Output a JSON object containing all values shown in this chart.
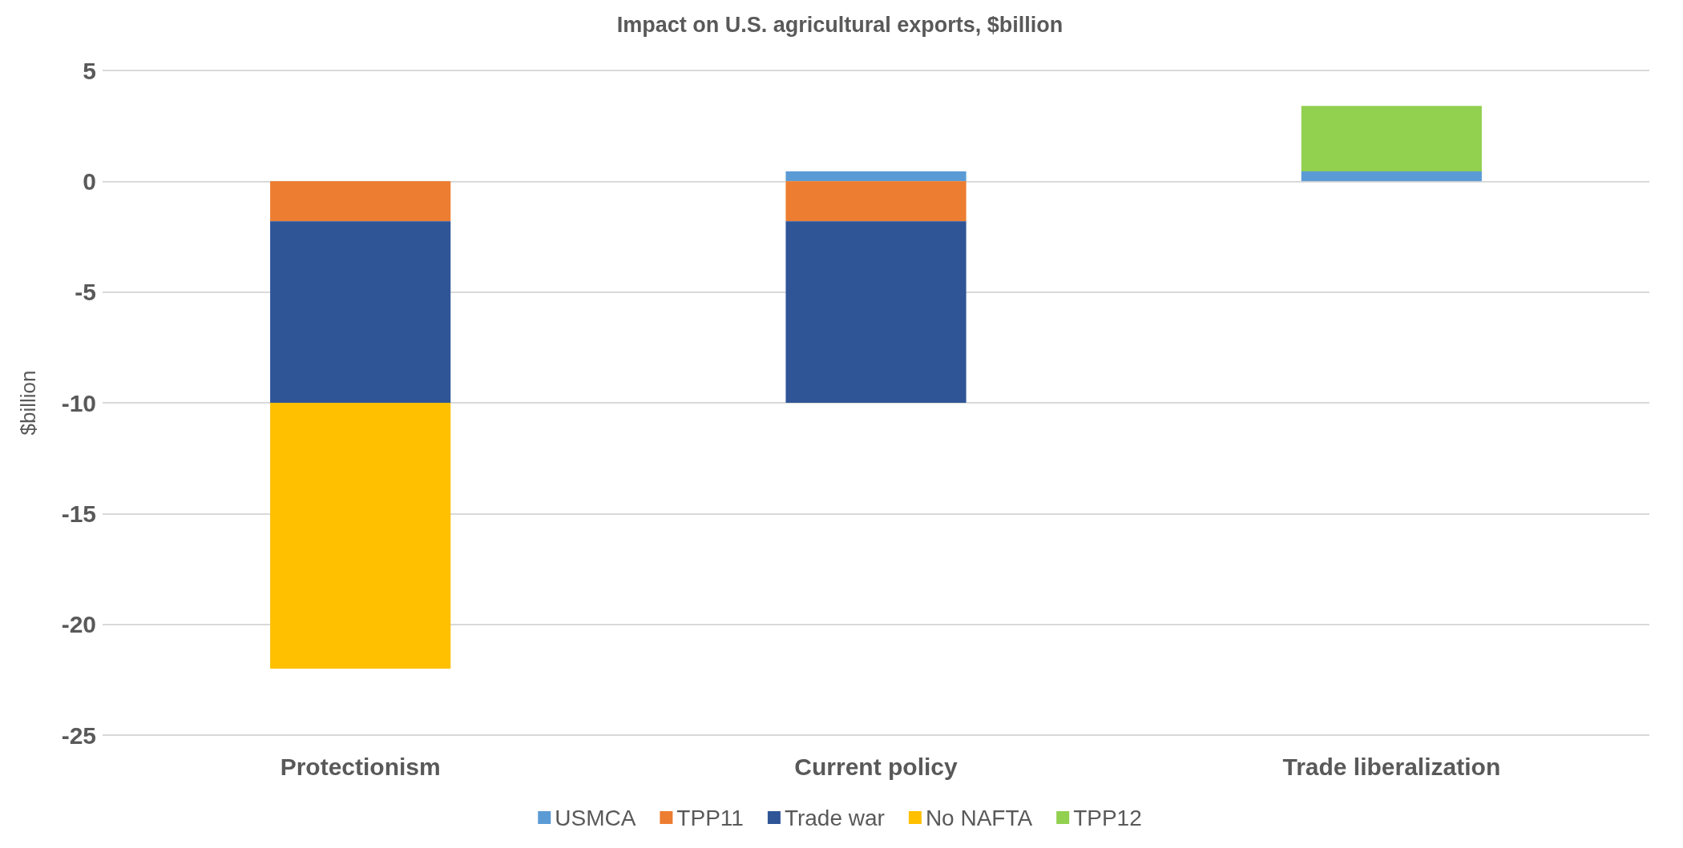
{
  "chart_data": {
    "type": "bar",
    "title": "Impact on U.S. agricultural exports, $billion",
    "ylabel": "$billion",
    "categories": [
      "Protectionism",
      "Current policy",
      "Trade liberalization"
    ],
    "stacked": true,
    "series": [
      {
        "name": "USMCA",
        "color": "#5b9bd5",
        "values": [
          null,
          0.45,
          0.45
        ]
      },
      {
        "name": "TPP11",
        "color": "#ed7d31",
        "values": [
          -1.8,
          -1.8,
          null
        ]
      },
      {
        "name": "Trade war",
        "color": "#2f5597",
        "values": [
          -8.2,
          -8.2,
          null
        ]
      },
      {
        "name": "No NAFTA",
        "color": "#ffc000",
        "values": [
          -12,
          null,
          null
        ]
      },
      {
        "name": "TPP12",
        "color": "#92d050",
        "values": [
          null,
          null,
          2.95
        ]
      }
    ],
    "ylim": [
      -25,
      5
    ],
    "yticks": [
      -25,
      -20,
      -15,
      -10,
      -5,
      0,
      5
    ],
    "grid": true,
    "legend": "bottom"
  }
}
